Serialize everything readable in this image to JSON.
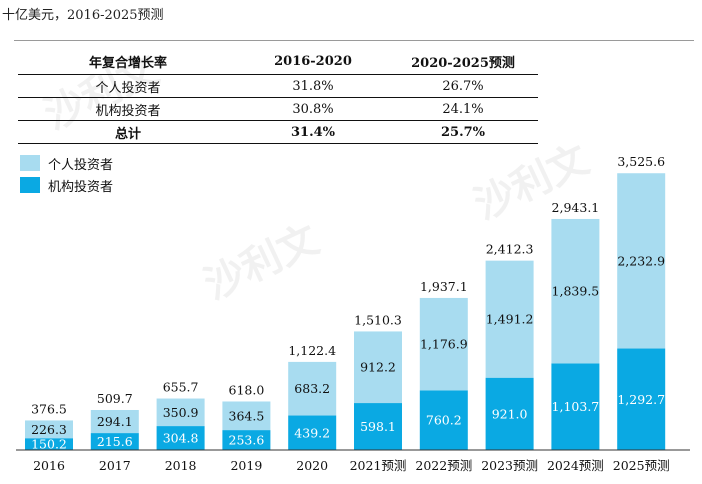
{
  "unit_label": "十亿美元，2016-2025预测",
  "table": {
    "headers": [
      "年复合增长率",
      "2016-2020",
      "2020-2025预测"
    ],
    "rows": [
      {
        "label": "个人投资者",
        "v1": "31.8%",
        "v2": "26.7%"
      },
      {
        "label": "机构投资者",
        "v1": "30.8%",
        "v2": "24.1%"
      },
      {
        "label": "总计",
        "v1": "31.4%",
        "v2": "25.7%"
      }
    ]
  },
  "watermark": "沙利文",
  "colors": {
    "individual": "#a8dcf0",
    "institutional": "#0aa9e3"
  },
  "chart_data": {
    "type": "bar",
    "stacked": true,
    "categories": [
      "2016",
      "2017",
      "2018",
      "2019",
      "2020",
      "2021预测",
      "2022预测",
      "2023预测",
      "2024预测",
      "2025预测"
    ],
    "series": [
      {
        "name": "机构投资者",
        "values": [
          150.2,
          215.6,
          304.8,
          253.6,
          439.2,
          598.1,
          760.2,
          921.0,
          1103.7,
          1292.7
        ],
        "labels": [
          "150.2",
          "215.6",
          "304.8",
          "253.6",
          "439.2",
          "598.1",
          "760.2",
          "921.0",
          "1,103.7",
          "1,292.7"
        ]
      },
      {
        "name": "个人投资者",
        "values": [
          226.3,
          294.1,
          350.9,
          364.5,
          683.2,
          912.2,
          1176.9,
          1491.2,
          1839.5,
          2232.9
        ],
        "labels": [
          "226.3",
          "294.1",
          "350.9",
          "364.5",
          "683.2",
          "912.2",
          "1,176.9",
          "1,491.2",
          "1,839.5",
          "2,232.9"
        ]
      }
    ],
    "totals": [
      376.5,
      509.7,
      655.7,
      618.0,
      1122.4,
      1510.3,
      1937.1,
      2412.3,
      2943.1,
      3525.6
    ],
    "total_labels": [
      "376.5",
      "509.7",
      "655.7",
      "618.0",
      "1,122.4",
      "1,510.3",
      "1,937.1",
      "2,412.3",
      "2,943.1",
      "3,525.6"
    ],
    "legend": [
      "个人投资者",
      "机构投资者"
    ]
  }
}
